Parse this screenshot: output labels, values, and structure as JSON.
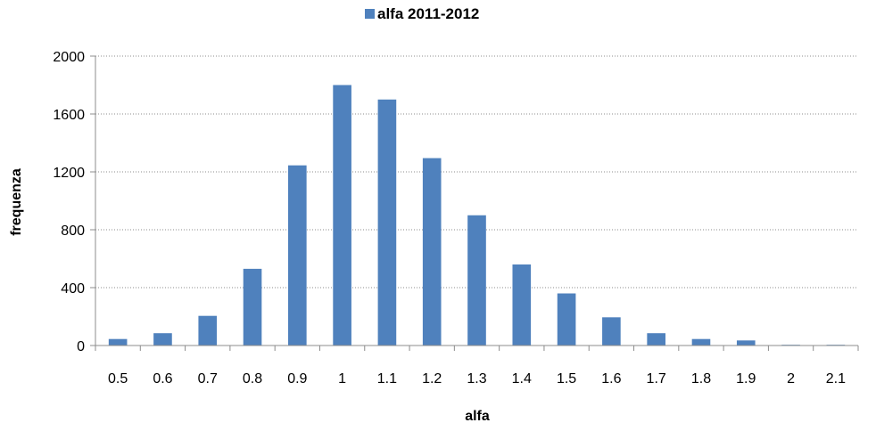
{
  "chart_data": {
    "type": "bar",
    "title": "",
    "xlabel": "alfa",
    "ylabel": "frequenza",
    "categories": [
      "0.5",
      "0.6",
      "0.7",
      "0.8",
      "0.9",
      "1",
      "1.1",
      "1.2",
      "1.3",
      "1.4",
      "1.5",
      "1.6",
      "1.7",
      "1.8",
      "1.9",
      "2",
      "2.1"
    ],
    "series": [
      {
        "name": "alfa 2011-2012",
        "color": "#4f81bd",
        "values": [
          45,
          85,
          205,
          530,
          1245,
          1800,
          1700,
          1295,
          900,
          560,
          360,
          195,
          85,
          45,
          35,
          5,
          5
        ]
      }
    ],
    "ylim": [
      0,
      2000
    ],
    "yticks": [
      "0",
      "400",
      "800",
      "1200",
      "1600",
      "2000"
    ],
    "grid": true,
    "legend_position": "top"
  }
}
